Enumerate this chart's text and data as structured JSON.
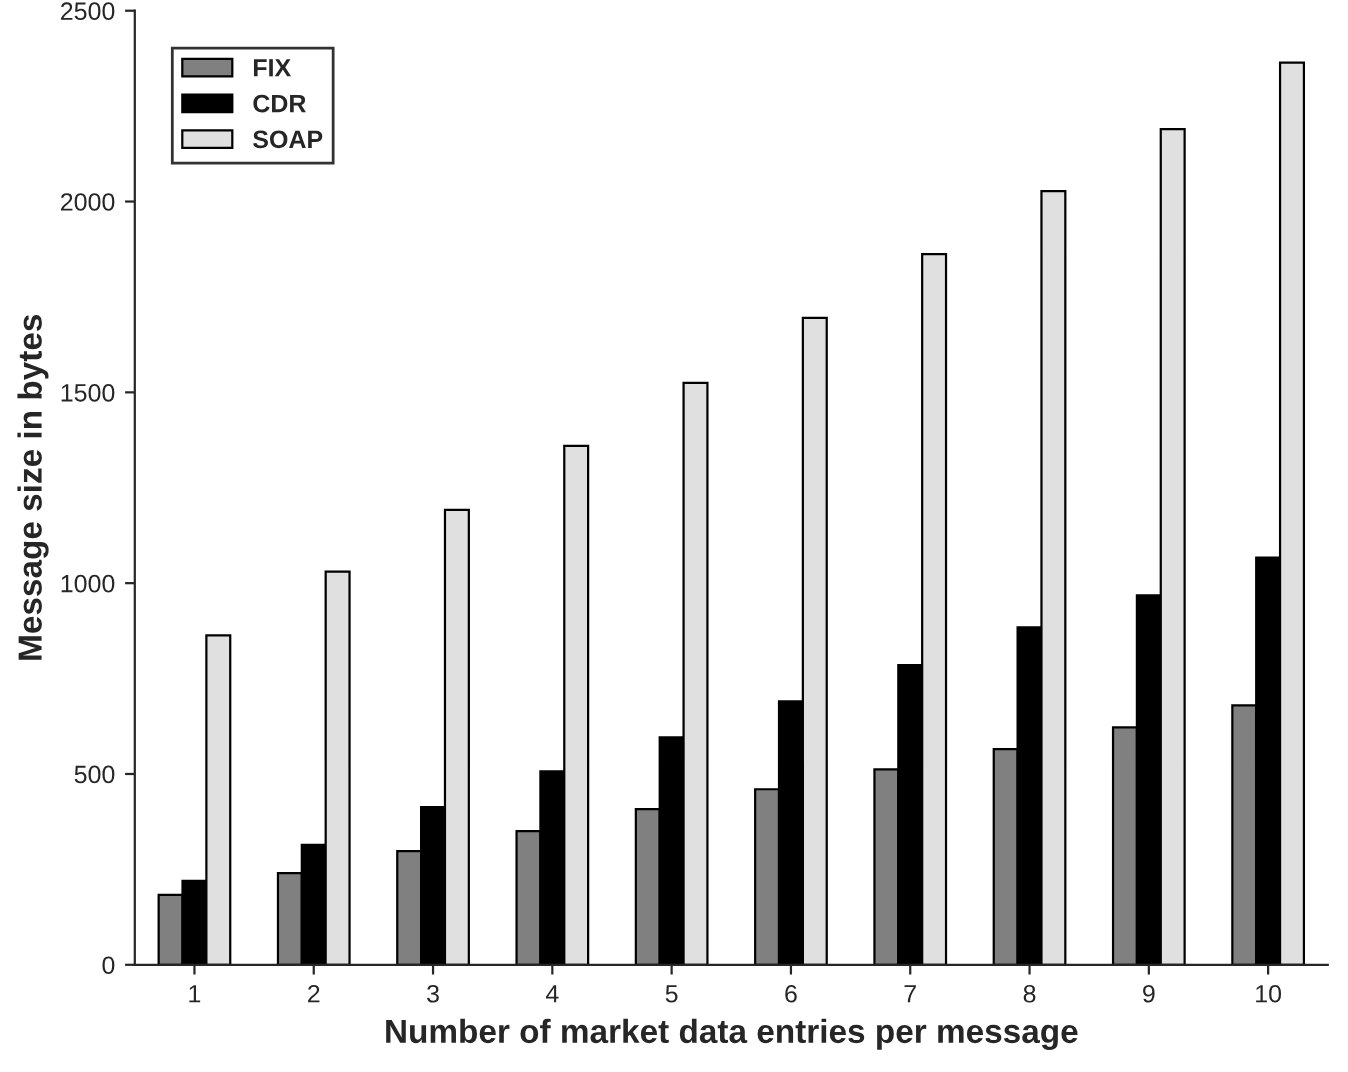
{
  "chart_data": {
    "type": "bar",
    "xlabel": "Number of market data entries per message",
    "ylabel": "Message size in bytes",
    "categories": [
      "1",
      "2",
      "3",
      "4",
      "5",
      "6",
      "7",
      "8",
      "9",
      "10"
    ],
    "series": [
      {
        "name": "FIX",
        "color": "#808080",
        "values": [
          183,
          240,
          298,
          350,
          408,
          460,
          512,
          565,
          622,
          680
        ]
      },
      {
        "name": "CDR",
        "color": "#000000",
        "values": [
          220,
          314,
          413,
          507,
          596,
          690,
          785,
          884,
          968,
          1067
        ]
      },
      {
        "name": "SOAP",
        "color": "#e0e0e0",
        "values": [
          863,
          1030,
          1192,
          1360,
          1525,
          1695,
          1862,
          2027,
          2190,
          2364
        ]
      }
    ],
    "ylim": [
      0,
      2500
    ],
    "yticks": [
      0,
      500,
      1000,
      1500,
      2000,
      2500
    ],
    "grid": false,
    "legend": "top left"
  }
}
